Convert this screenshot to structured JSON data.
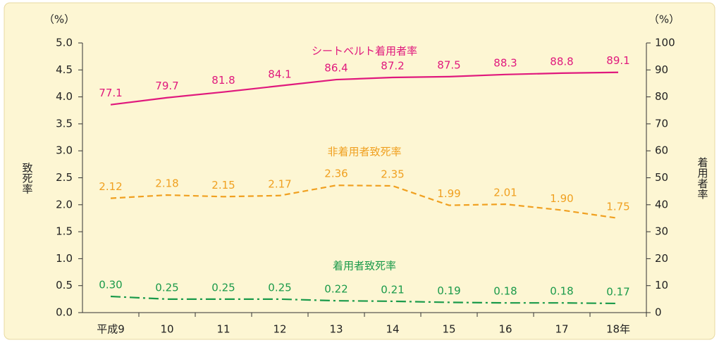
{
  "chart_data": {
    "type": "line",
    "y_unit": "（%）",
    "y2_unit": "（%）",
    "ylabel": "致死率",
    "y2label": "着用者率",
    "categories": [
      "平成9",
      "10",
      "11",
      "12",
      "13",
      "14",
      "15",
      "16",
      "17",
      "18年"
    ],
    "ylim": [
      0,
      5
    ],
    "yticks": [
      {
        "value": 0,
        "label": "0.0"
      },
      {
        "value": 0.5,
        "label": "0.5"
      },
      {
        "value": 1,
        "label": "1.0"
      },
      {
        "value": 1.5,
        "label": "1.5"
      },
      {
        "value": 2,
        "label": "2.0"
      },
      {
        "value": 2.5,
        "label": "2.5"
      },
      {
        "value": 3,
        "label": "3.0"
      },
      {
        "value": 3.5,
        "label": "3.5"
      },
      {
        "value": 4,
        "label": "4.0"
      },
      {
        "value": 4.5,
        "label": "4.5"
      },
      {
        "value": 5,
        "label": "5.0"
      }
    ],
    "y2lim": [
      0,
      100
    ],
    "y2ticks": [
      0,
      10,
      20,
      30,
      40,
      50,
      60,
      70,
      80,
      90,
      100
    ],
    "series": [
      {
        "name": "シートベルト着用者率",
        "color": "#e0197d",
        "dash": "solid",
        "axis": "y2",
        "values": [
          77.1,
          79.7,
          81.8,
          84.1,
          86.4,
          87.2,
          87.5,
          88.3,
          88.8,
          89.1
        ]
      },
      {
        "name": "非着用者致死率",
        "color": "#f0a020",
        "dash": "dashed",
        "values": [
          2.12,
          2.18,
          2.15,
          2.17,
          2.36,
          2.35,
          1.99,
          2.01,
          1.9,
          1.75
        ],
        "value_labels": [
          "2.12",
          "2.18",
          "2.15",
          "2.17",
          "2.36",
          "2.35",
          "1.99",
          "2.01",
          "1.90",
          "1.75"
        ]
      },
      {
        "name": "着用者致死率",
        "color": "#1a9a4a",
        "dash": "dashdot",
        "values": [
          0.3,
          0.25,
          0.25,
          0.25,
          0.22,
          0.21,
          0.19,
          0.18,
          0.18,
          0.17
        ],
        "value_labels": [
          "0.30",
          "0.25",
          "0.25",
          "0.25",
          "0.22",
          "0.21",
          "0.19",
          "0.18",
          "0.18",
          "0.17"
        ]
      }
    ]
  }
}
